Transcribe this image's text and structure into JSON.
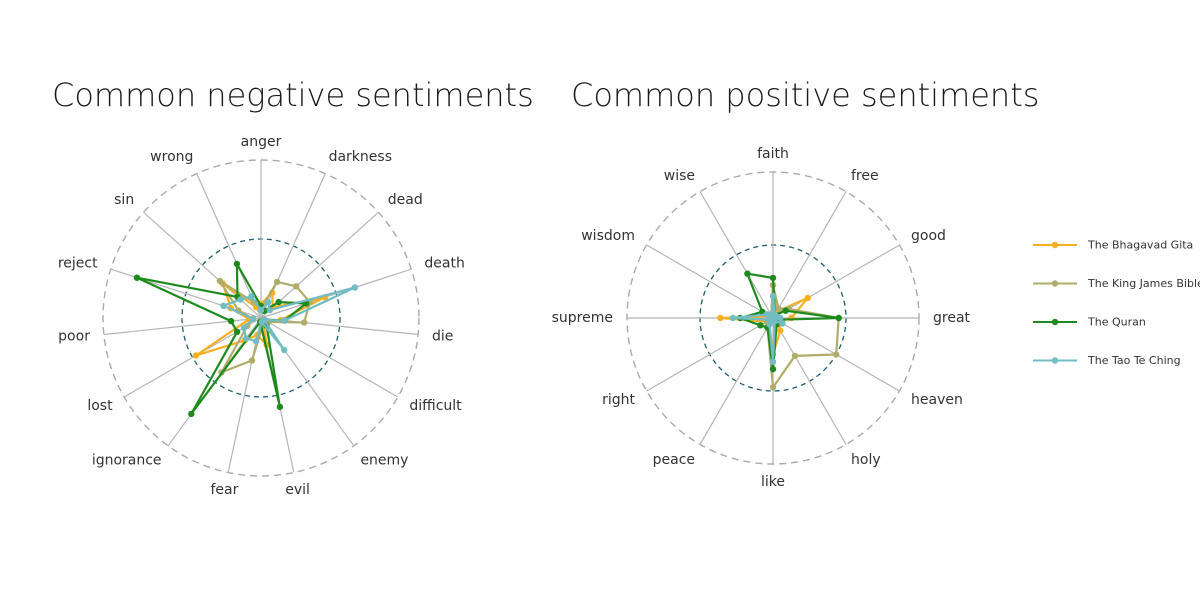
{
  "titles": {
    "negative": "Common negative sentiments",
    "positive": "Common positive sentiments"
  },
  "series_colors": {
    "The Bhagavad Gita": "#f5b021",
    "The King James Bible": "#b0ad6a",
    "The Quran": "#1e8a1e",
    "The Tao Te Ching": "#72bcc4"
  },
  "legend": [
    "The Bhagavad Gita",
    "The King James Bible",
    "The Quran",
    "The Tao Te Ching"
  ],
  "chart_data": [
    {
      "type": "radar",
      "title": "Common negative sentiments",
      "categories": [
        "anger",
        "darkness",
        "dead",
        "death",
        "die",
        "difficult",
        "enemy",
        "evil",
        "fear",
        "ignorance",
        "lost",
        "poor",
        "reject",
        "sin",
        "wrong"
      ],
      "rlim": [
        0,
        2
      ],
      "grid": true,
      "series": [
        {
          "name": "The Bhagavad Gita",
          "values": [
            0.18,
            0.35,
            0.2,
            0.85,
            0.25,
            0.05,
            0.05,
            0.35,
            0.22,
            0.35,
            0.95,
            0.15,
            0.4,
            0.65,
            0.15
          ]
        },
        {
          "name": "The King James Bible",
          "values": [
            0.12,
            0.5,
            0.6,
            0.65,
            0.55,
            0.1,
            0.1,
            0.1,
            0.55,
            0.85,
            0.2,
            0.1,
            0.3,
            0.7,
            0.22
          ]
        },
        {
          "name": "The Quran",
          "values": [
            0.15,
            0.1,
            0.3,
            0.6,
            0.3,
            0.05,
            0.12,
            1.15,
            0.05,
            1.5,
            0.35,
            0.38,
            1.65,
            0.4,
            0.75
          ]
        },
        {
          "name": "The Tao Te Ching",
          "values": [
            0.1,
            0.22,
            0.15,
            1.25,
            0.3,
            0.05,
            0.5,
            0.05,
            0.3,
            0.32,
            0.25,
            0.1,
            0.5,
            0.35,
            0.3
          ]
        }
      ]
    },
    {
      "type": "radar",
      "title": "Common positive sentiments",
      "categories": [
        "faith",
        "free",
        "good",
        "great",
        "heaven",
        "holy",
        "like",
        "peace",
        "right",
        "supreme",
        "wisdom",
        "wise"
      ],
      "rlim": [
        0,
        2
      ],
      "grid": true,
      "series": [
        {
          "name": "The Bhagavad Gita",
          "values": [
            0.45,
            0.1,
            0.55,
            0.25,
            0.1,
            0.2,
            0.5,
            0.1,
            0.1,
            0.72,
            0.05,
            0.05
          ]
        },
        {
          "name": "The King James Bible",
          "values": [
            0.45,
            0.15,
            0.25,
            0.9,
            1.0,
            0.6,
            0.95,
            0.15,
            0.1,
            0.05,
            0.1,
            0.05
          ]
        },
        {
          "name": "The Quran",
          "values": [
            0.55,
            0.05,
            0.2,
            0.9,
            0.05,
            0.1,
            0.7,
            0.15,
            0.2,
            0.45,
            0.17,
            0.7
          ]
        },
        {
          "name": "The Tao Te Ching",
          "values": [
            0.3,
            0.05,
            0.05,
            0.1,
            0.15,
            0.05,
            0.6,
            0.1,
            0.05,
            0.55,
            0.1,
            0.05
          ]
        }
      ]
    }
  ]
}
